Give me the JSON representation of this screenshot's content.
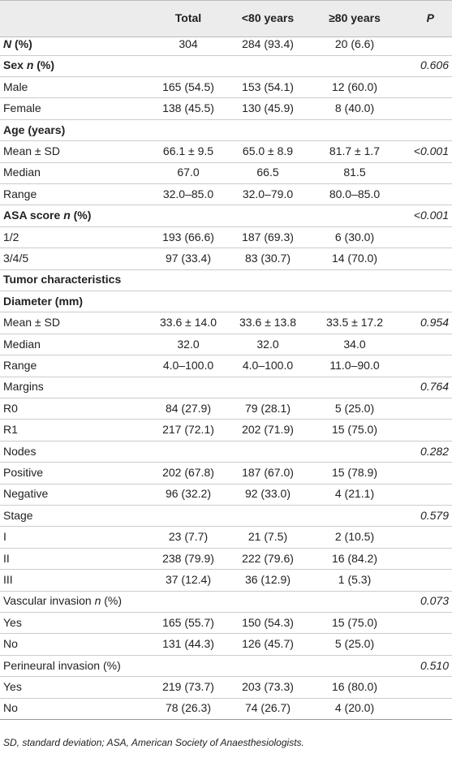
{
  "table": {
    "header": [
      "Total",
      "<80 years",
      "≥80 years",
      "P"
    ],
    "rows": [
      {
        "label": [
          {
            "text": "N",
            "italic": true
          },
          {
            "text": " (%)"
          }
        ],
        "bold": true,
        "cells": [
          "304",
          "284 (93.4)",
          "20 (6.6)",
          null
        ]
      },
      {
        "label": [
          {
            "text": "Sex "
          },
          {
            "text": "n",
            "italic": true
          },
          {
            "text": " (%)"
          }
        ],
        "bold": true,
        "cells": [
          null,
          null,
          null,
          "0.606"
        ]
      },
      {
        "label": "Male",
        "cells": [
          "165 (54.5)",
          "153 (54.1)",
          "12 (60.0)",
          null
        ]
      },
      {
        "label": "Female",
        "cells": [
          "138 (45.5)",
          "130 (45.9)",
          "8 (40.0)",
          null
        ]
      },
      {
        "label": "Age (years)",
        "bold": true,
        "cells": [
          null,
          null,
          null,
          null
        ]
      },
      {
        "label": "Mean ± SD",
        "cells": [
          "66.1 ± 9.5",
          "65.0 ± 8.9",
          "81.7 ± 1.7",
          "<0.001"
        ]
      },
      {
        "label": "Median",
        "cells": [
          "67.0",
          "66.5",
          "81.5",
          null
        ]
      },
      {
        "label": "Range",
        "cells": [
          "32.0–85.0",
          "32.0–79.0",
          "80.0–85.0",
          null
        ]
      },
      {
        "label": [
          {
            "text": "ASA score "
          },
          {
            "text": "n",
            "italic": true
          },
          {
            "text": " (%)"
          }
        ],
        "bold": true,
        "cells": [
          null,
          null,
          null,
          "<0.001"
        ]
      },
      {
        "label": "1/2",
        "cells": [
          "193 (66.6)",
          "187 (69.3)",
          "6 (30.0)",
          null
        ]
      },
      {
        "label": "3/4/5",
        "cells": [
          "97 (33.4)",
          "83 (30.7)",
          "14 (70.0)",
          null
        ]
      },
      {
        "label": "Tumor characteristics",
        "bold": true,
        "cells": [
          null,
          null,
          null,
          null
        ]
      },
      {
        "label": "Diameter (mm)",
        "bold": true,
        "cells": [
          null,
          null,
          null,
          null
        ]
      },
      {
        "label": "Mean ± SD",
        "cells": [
          "33.6 ± 14.0",
          "33.6 ± 13.8",
          "33.5 ± 17.2",
          "0.954"
        ]
      },
      {
        "label": "Median",
        "cells": [
          "32.0",
          "32.0",
          "34.0",
          null
        ]
      },
      {
        "label": "Range",
        "cells": [
          "4.0–100.0",
          "4.0–100.0",
          "11.0–90.0",
          null
        ]
      },
      {
        "label": "Margins",
        "cells": [
          null,
          null,
          null,
          "0.764"
        ]
      },
      {
        "label": "R0",
        "cells": [
          "84 (27.9)",
          "79 (28.1)",
          "5 (25.0)",
          null
        ]
      },
      {
        "label": "R1",
        "cells": [
          "217 (72.1)",
          "202 (71.9)",
          "15 (75.0)",
          null
        ]
      },
      {
        "label": "Nodes",
        "cells": [
          null,
          null,
          null,
          "0.282"
        ]
      },
      {
        "label": "Positive",
        "cells": [
          "202 (67.8)",
          "187 (67.0)",
          "15 (78.9)",
          null
        ]
      },
      {
        "label": "Negative",
        "cells": [
          "96 (32.2)",
          "92 (33.0)",
          "4 (21.1)",
          null
        ]
      },
      {
        "label": "Stage",
        "cells": [
          null,
          null,
          null,
          "0.579"
        ]
      },
      {
        "label": "I",
        "cells": [
          "23 (7.7)",
          "21 (7.5)",
          "2 (10.5)",
          null
        ]
      },
      {
        "label": "II",
        "cells": [
          "238 (79.9)",
          "222 (79.6)",
          "16 (84.2)",
          null
        ]
      },
      {
        "label": "III",
        "cells": [
          "37 (12.4)",
          "36 (12.9)",
          "1 (5.3)",
          null
        ]
      },
      {
        "label": [
          {
            "text": "Vascular invasion "
          },
          {
            "text": "n",
            "italic": true
          },
          {
            "text": " (%)"
          }
        ],
        "cells": [
          null,
          null,
          null,
          "0.073"
        ]
      },
      {
        "label": "Yes",
        "cells": [
          "165 (55.7)",
          "150 (54.3)",
          "15 (75.0)",
          null
        ]
      },
      {
        "label": "No",
        "cells": [
          "131 (44.3)",
          "126 (45.7)",
          "5 (25.0)",
          null
        ]
      },
      {
        "label": "Perineural invasion (%)",
        "cells": [
          null,
          null,
          null,
          "0.510"
        ]
      },
      {
        "label": "Yes",
        "cells": [
          "219 (73.7)",
          "203 (73.3)",
          "16 (80.0)",
          null
        ]
      },
      {
        "label": "No",
        "cells": [
          "78 (26.3)",
          "74 (26.7)",
          "4 (20.0)",
          null
        ]
      }
    ]
  },
  "footnote": "SD, standard deviation; ASA, American Society of Anaesthesiologists."
}
